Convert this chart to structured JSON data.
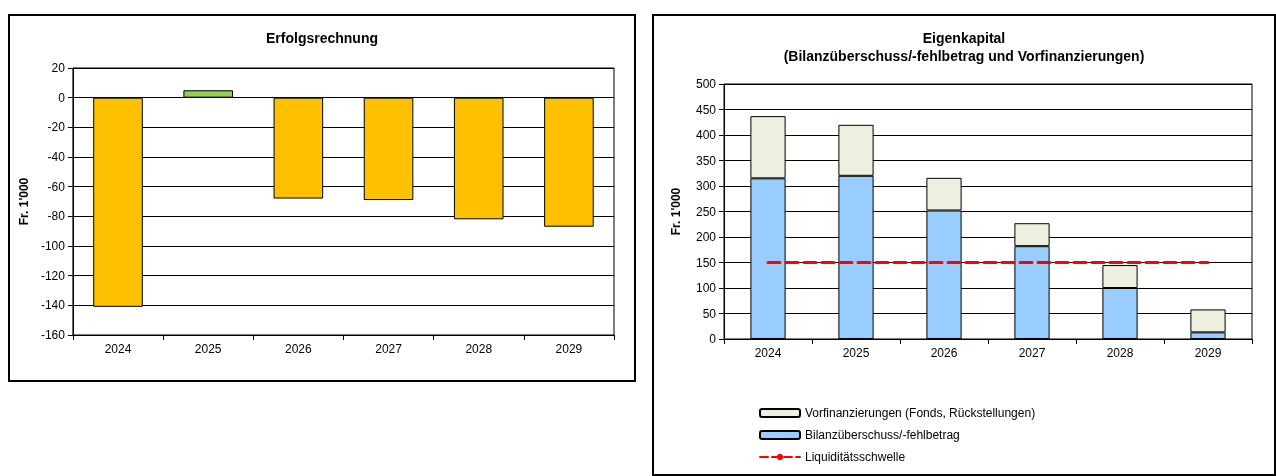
{
  "chart_data": [
    {
      "type": "bar",
      "title": "Erfolgsrechnung",
      "ylabel": "Fr. 1'000",
      "categories": [
        "2024",
        "2025",
        "2026",
        "2027",
        "2028",
        "2029"
      ],
      "values": [
        -141,
        5,
        -68,
        -69,
        -82,
        -87
      ],
      "colors": [
        "#ffc000",
        "#92d050",
        "#ffc000",
        "#ffc000",
        "#ffc000",
        "#ffc000"
      ],
      "ylim": [
        -160,
        20
      ],
      "yticks": [
        -160,
        -140,
        -120,
        -100,
        -80,
        -60,
        -40,
        -20,
        0,
        20
      ],
      "grid": "y",
      "legend": false
    },
    {
      "type": "bar",
      "title": "Eigenkapital\n(Bilanzüberschuss/-fehlbetrag und Vorfinanzierungen)",
      "ylabel": "Fr. 1'000",
      "categories": [
        "2024",
        "2025",
        "2026",
        "2027",
        "2028",
        "2029"
      ],
      "stacked": true,
      "series": [
        {
          "name": "Bilanzüberschuss/-fehlbetrag",
          "color": "#99ccff",
          "values": [
            315,
            320,
            252,
            182,
            100,
            13
          ]
        },
        {
          "name": "Vorfinanzierungen (Fonds, Rückstellungen)",
          "color": "#ebf1de",
          "values": [
            122,
            100,
            64,
            45,
            45,
            45
          ]
        },
        {
          "name": "Liquiditätsschwelle",
          "type": "line",
          "color": "#ff0000",
          "line_style": "dashed",
          "marker": "none",
          "values": [
            150,
            150,
            150,
            150,
            150,
            150
          ]
        }
      ],
      "ylim": [
        0,
        500
      ],
      "yticks": [
        0,
        50,
        100,
        150,
        200,
        250,
        300,
        350,
        400,
        450,
        500
      ],
      "grid": "y",
      "legend": "bottom"
    }
  ]
}
